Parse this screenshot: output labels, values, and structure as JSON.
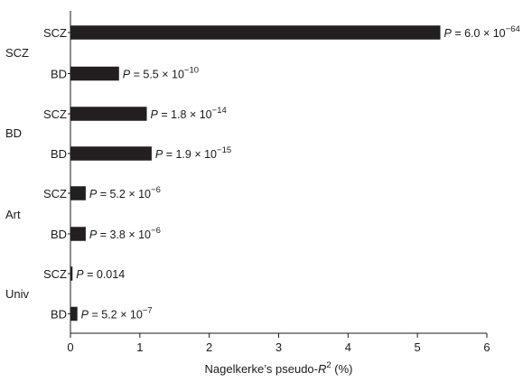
{
  "chart_data": {
    "type": "bar",
    "orientation": "horizontal",
    "xlabel_prefix": "Nagelkerke’s pseudo-",
    "xlabel_R": "R",
    "xlabel_sup": "2",
    "xlabel_suffix": " (%)",
    "xlim": [
      0,
      6
    ],
    "xticks": [
      "0",
      "1",
      "2",
      "3",
      "4",
      "5",
      "6"
    ],
    "groups": [
      {
        "label": "SCZ",
        "bars": [
          {
            "label": "SCZ",
            "value": 5.33,
            "p_lead": "P",
            "p_text": " = 6.0 × 10",
            "p_exp": "−64"
          },
          {
            "label": "BD",
            "value": 0.7,
            "p_lead": "P",
            "p_text": " = 5.5 × 10",
            "p_exp": "−10"
          }
        ]
      },
      {
        "label": "BD",
        "bars": [
          {
            "label": "SCZ",
            "value": 1.1,
            "p_lead": "P",
            "p_text": " = 1.8 × 10",
            "p_exp": "−14"
          },
          {
            "label": "BD",
            "value": 1.17,
            "p_lead": "P",
            "p_text": " = 1.9 × 10",
            "p_exp": "−15"
          }
        ]
      },
      {
        "label": "Art",
        "bars": [
          {
            "label": "SCZ",
            "value": 0.22,
            "p_lead": "P",
            "p_text": " = 5.2 × 10",
            "p_exp": "−6"
          },
          {
            "label": "BD",
            "value": 0.22,
            "p_lead": "P",
            "p_text": " = 3.8 × 10",
            "p_exp": "−6"
          }
        ]
      },
      {
        "label": "Univ",
        "bars": [
          {
            "label": "SCZ",
            "value": 0.03,
            "p_lead": "P",
            "p_text": " = 0.014",
            "p_exp": ""
          },
          {
            "label": "BD",
            "value": 0.1,
            "p_lead": "P",
            "p_text": " = 5.2 × 10",
            "p_exp": "−7"
          }
        ]
      }
    ],
    "colors": {
      "bar": "#231f20",
      "axis": "#1a1a1a"
    }
  }
}
